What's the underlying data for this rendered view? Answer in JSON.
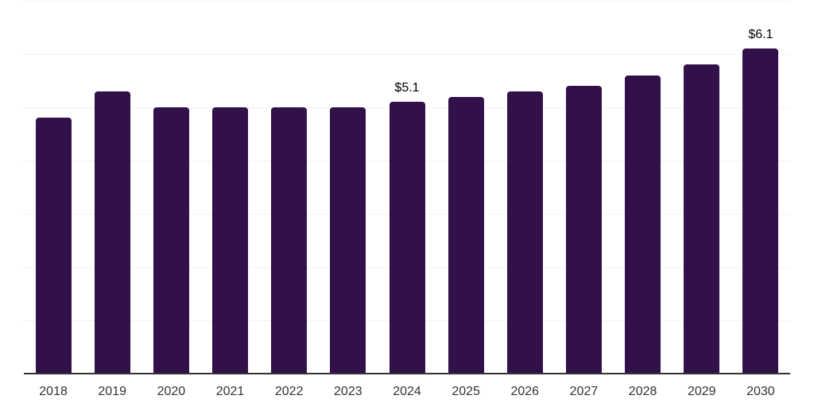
{
  "chart": {
    "background_color": "#ffffff",
    "bar_color": "#32114a",
    "axis_color": "#333333",
    "grid_color": "#f2f2f2",
    "x_label_color": "#333333",
    "data_label_color": "#000000"
  },
  "chart_data": {
    "type": "bar",
    "categories": [
      "2018",
      "2019",
      "2020",
      "2021",
      "2022",
      "2023",
      "2024",
      "2025",
      "2026",
      "2027",
      "2028",
      "2029",
      "2030"
    ],
    "values": [
      4.8,
      5.3,
      5.0,
      5.0,
      5.0,
      5.0,
      5.1,
      5.2,
      5.3,
      5.4,
      5.6,
      5.8,
      6.1
    ],
    "data_labels": [
      "",
      "",
      "",
      "",
      "",
      "",
      "$5.1",
      "",
      "",
      "",
      "",
      "",
      "$6.1"
    ],
    "title": "",
    "xlabel": "",
    "ylabel": "",
    "ylim": [
      0,
      7
    ],
    "grid_step": 1,
    "grid": "horizontal",
    "y_axis_labels": "hidden",
    "legend": "none"
  }
}
